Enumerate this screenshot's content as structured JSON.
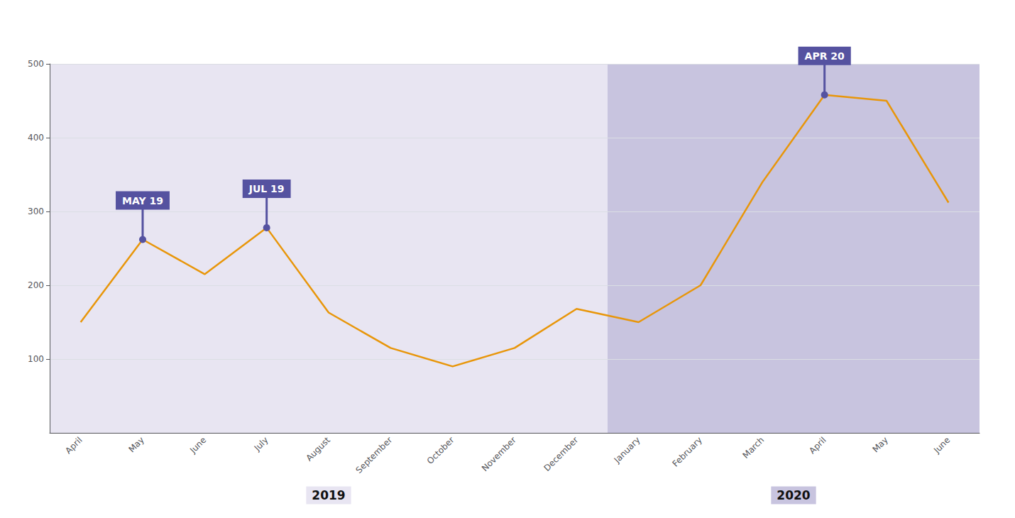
{
  "chart_data": {
    "type": "line",
    "categories": [
      "April",
      "May",
      "June",
      "July",
      "August",
      "September",
      "October",
      "November",
      "December",
      "January",
      "February",
      "March",
      "April",
      "May",
      "June"
    ],
    "values": [
      150,
      262,
      215,
      278,
      163,
      115,
      90,
      115,
      168,
      150,
      200,
      340,
      458,
      450,
      312
    ],
    "color": "#E8960A",
    "ylim": [
      0,
      500
    ],
    "yticks": [
      100,
      200,
      300,
      400,
      500
    ],
    "grid": true,
    "annotations": [
      {
        "text": "MAY 19",
        "index": 1,
        "color": "#5552A0"
      },
      {
        "text": "JUL 19",
        "index": 3,
        "color": "#5552A0"
      },
      {
        "text": "APR 20",
        "index": 12,
        "color": "#5552A0"
      }
    ],
    "periods": [
      {
        "text": "2019",
        "from": 0,
        "to": 8,
        "color": "#E8E5F2"
      },
      {
        "text": "2020",
        "from": 9,
        "to": 14,
        "color": "#C8C4DF"
      }
    ]
  }
}
